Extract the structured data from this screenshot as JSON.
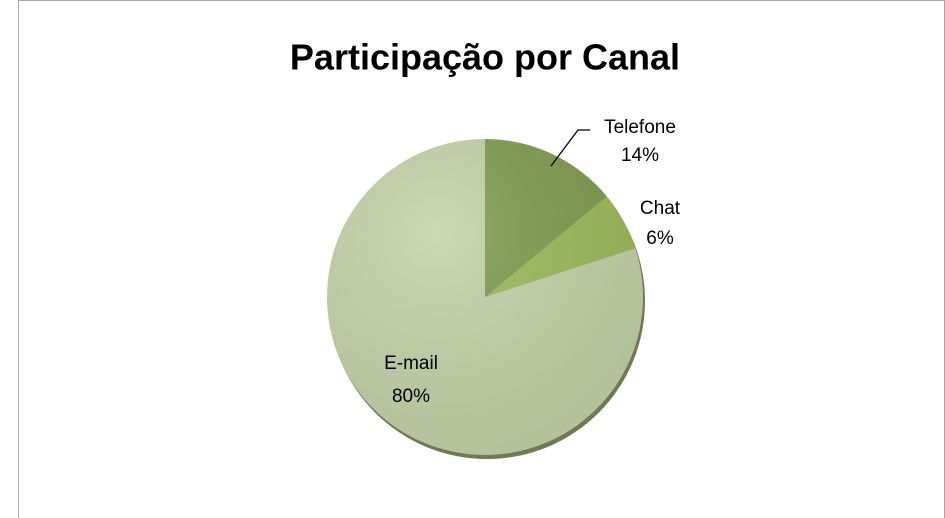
{
  "chart_data": {
    "type": "pie",
    "title": "Participação por Canal",
    "categories": [
      "Telefone",
      "Chat",
      "E-mail"
    ],
    "values": [
      14,
      6,
      80
    ],
    "value_labels": [
      "14%",
      "6%",
      "80%"
    ],
    "colors": [
      "#7f9b4e",
      "#9bbb59",
      "#c3d2a8"
    ]
  }
}
